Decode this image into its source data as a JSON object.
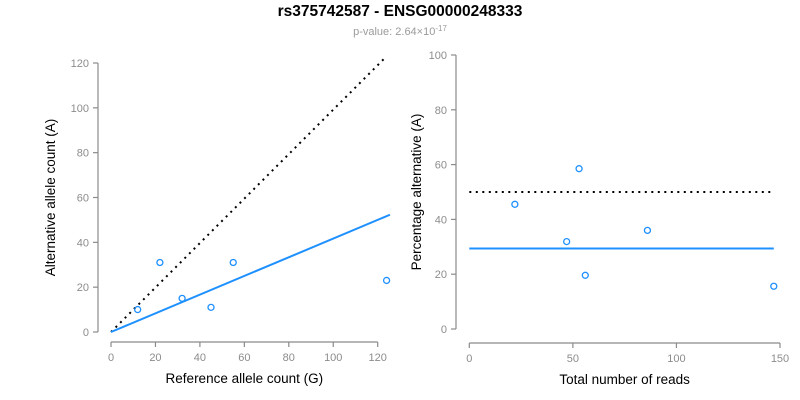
{
  "header": {
    "title": "rs375742587 - ENSG00000248333",
    "p_label": "p-value: 2.64×10",
    "p_exponent": "-17"
  },
  "colors": {
    "blue": "#1E90FF",
    "black": "#000000",
    "axis": "#8b8b8b",
    "tick_label": "#8c8c8c",
    "axis_title": "#000000",
    "subtitle_gray": "#9b9b9b",
    "background": "#ffffff"
  },
  "chart_data": [
    {
      "type": "scatter",
      "title": "rs375742587 - ENSG00000248333",
      "subtitle": "p-value: 2.64×10^-17",
      "xlabel": "Reference allele count (G)",
      "ylabel": "Alternative allele count (A)",
      "xlim": [
        0,
        120
      ],
      "ylim": [
        0,
        120
      ],
      "xticks": [
        0,
        20,
        40,
        60,
        80,
        100,
        120
      ],
      "yticks": [
        0,
        20,
        40,
        60,
        80,
        100,
        120
      ],
      "grid": false,
      "legend": "none",
      "point_color": "#1E90FF",
      "points": [
        [
          12,
          10
        ],
        [
          22,
          31
        ],
        [
          32,
          15
        ],
        [
          45,
          11
        ],
        [
          55,
          31
        ],
        [
          124,
          23
        ]
      ],
      "lines": [
        {
          "name": "identity-line",
          "label": "y = x",
          "style": "dotted",
          "color": "#000000",
          "from": [
            0,
            0
          ],
          "to": [
            123.5,
            122.5
          ]
        },
        {
          "name": "regression-line",
          "label": "fit slope 0.417",
          "style": "solid",
          "color": "#1E90FF",
          "from": [
            0,
            0
          ],
          "to": [
            125.5,
            52.3
          ]
        }
      ]
    },
    {
      "type": "scatter",
      "xlabel": "Total number of reads",
      "ylabel": "Percentage alternative (A)",
      "xlim": [
        0,
        150
      ],
      "ylim": [
        0,
        100
      ],
      "xticks": [
        0,
        50,
        100,
        150
      ],
      "yticks": [
        0,
        20,
        40,
        60,
        80,
        100
      ],
      "grid": false,
      "legend": "none",
      "point_color": "#1E90FF",
      "points": [
        [
          22,
          45.5
        ],
        [
          47,
          31.9
        ],
        [
          53,
          58.5
        ],
        [
          56,
          19.6
        ],
        [
          86,
          36.0
        ],
        [
          147,
          15.6
        ]
      ],
      "lines": [
        {
          "name": "expected-50pct-line",
          "label": "50% expected",
          "style": "dotted",
          "color": "#000000",
          "from": [
            0,
            50
          ],
          "to": [
            145.5,
            50
          ]
        },
        {
          "name": "mean-percentage-line",
          "label": "mean 29.4%",
          "style": "solid",
          "color": "#1E90FF",
          "from": [
            0,
            29.4
          ],
          "to": [
            147,
            29.4
          ]
        }
      ]
    }
  ]
}
